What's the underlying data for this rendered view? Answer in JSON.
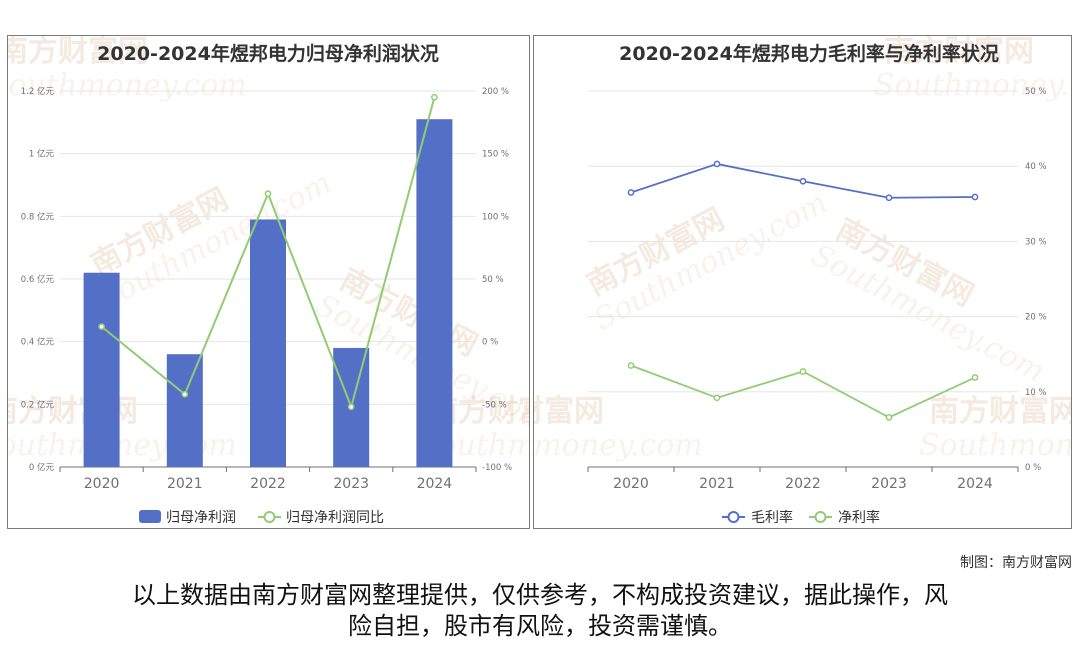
{
  "chart_data": [
    {
      "type": "bar",
      "title": "2020-2024年煜邦电力归母净利润状况",
      "categories": [
        "2020",
        "2021",
        "2022",
        "2023",
        "2024"
      ],
      "series": [
        {
          "name": "归母净利润",
          "kind": "bar",
          "axis": "left",
          "values": [
            0.62,
            0.36,
            0.79,
            0.38,
            1.11
          ],
          "color": "#5470c6"
        },
        {
          "name": "归母净利润同比",
          "kind": "line",
          "axis": "right",
          "values": [
            12,
            -42,
            118,
            -52,
            195
          ],
          "color": "#91cc75"
        }
      ],
      "y_left": {
        "min": 0,
        "max": 1.2,
        "ticks": [
          "0 亿元",
          "0.2 亿元",
          "0.4 亿元",
          "0.6 亿元",
          "0.8 亿元",
          "1 亿元",
          "1.2 亿元"
        ]
      },
      "y_right": {
        "min": -100,
        "max": 200,
        "ticks": [
          "-100 %",
          "-50 %",
          "0 %",
          "50 %",
          "100 %",
          "150 %",
          "200 %"
        ]
      },
      "grid": true,
      "legend_position": "bottom-center"
    },
    {
      "type": "line",
      "title": "2020-2024年煜邦电力毛利率与净利率状况",
      "categories": [
        "2020",
        "2021",
        "2022",
        "2023",
        "2024"
      ],
      "series": [
        {
          "name": "毛利率",
          "values": [
            36.5,
            40.3,
            38.0,
            35.8,
            35.9
          ],
          "color": "#5470c6"
        },
        {
          "name": "净利率",
          "values": [
            13.5,
            9.2,
            12.7,
            6.6,
            11.9
          ],
          "color": "#91cc75"
        }
      ],
      "y_right": {
        "min": 0,
        "max": 50,
        "ticks": [
          "0 %",
          "10 %",
          "20 %",
          "30 %",
          "40 %",
          "50 %"
        ]
      },
      "grid": true,
      "legend_position": "bottom-center"
    }
  ],
  "watermark": {
    "line1": "南方财富网",
    "line2": "Southmoney.com"
  },
  "credit": "制图：南方财富网",
  "disclaimer": [
    "以上数据由南方财富网整理提供，仅供参考，不构成投资建议，据此操作，风",
    "险自担，股市有风险，投资需谨慎。"
  ]
}
